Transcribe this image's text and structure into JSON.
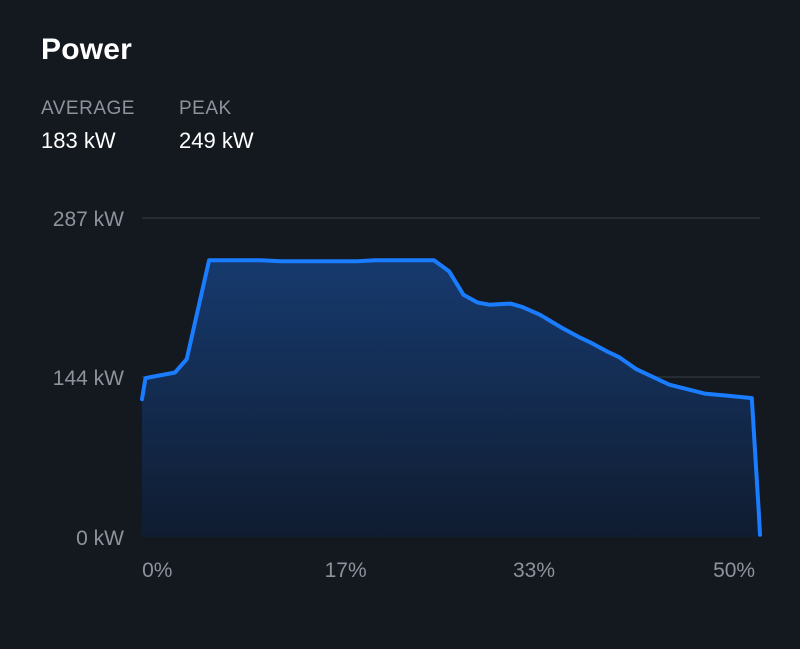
{
  "header": {
    "title": "Power"
  },
  "stats": {
    "average_label": "AVERAGE",
    "average_value": "183 kW",
    "peak_label": "PEAK",
    "peak_value": "249 kW"
  },
  "colors": {
    "background": "#14181f",
    "line": "#1a7cff",
    "fill_top": "#163a6e",
    "fill_bottom": "#101c30",
    "grid": "#3a3f47",
    "muted_text": "#8d939c"
  },
  "chart_data": {
    "type": "area",
    "title": "Power",
    "xlabel": "",
    "ylabel": "",
    "ylim": [
      0,
      287
    ],
    "xlim": [
      -0.3,
      52.2
    ],
    "y_ticks": [
      {
        "value": 287,
        "label": "287 kW"
      },
      {
        "value": 144,
        "label": "144 kW"
      },
      {
        "value": 0,
        "label": "0 kW"
      }
    ],
    "x_ticks": [
      {
        "value": 1,
        "label": "0%"
      },
      {
        "value": 17,
        "label": "17%"
      },
      {
        "value": 33,
        "label": "33%"
      },
      {
        "value": 50,
        "label": "50%"
      }
    ],
    "grid": true,
    "series": [
      {
        "x": [
          -0.3,
          0,
          2.5,
          3.5,
          5.4,
          9.8,
          11.5,
          18,
          19.5,
          24.5,
          25.8,
          27,
          28.2,
          29.2,
          31,
          32,
          33.5,
          35.4,
          36.8,
          37.8,
          39.2,
          40.2,
          41.7,
          44.5,
          47.5,
          49.5,
          51.5,
          52.1,
          52.2
        ],
        "y": [
          124,
          143,
          148,
          160,
          249,
          249,
          248,
          248,
          249,
          249,
          239,
          218,
          211,
          209,
          210,
          207,
          200,
          188,
          180,
          175,
          167,
          162,
          151,
          137,
          129,
          127,
          125,
          22,
          2
        ]
      }
    ]
  }
}
